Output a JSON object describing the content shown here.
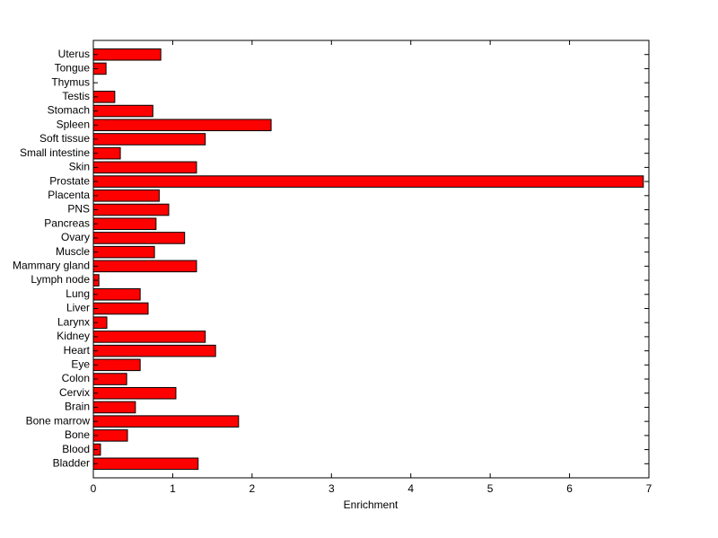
{
  "chart_data": {
    "type": "barh",
    "x_label": "Enrichment",
    "categories": [
      "Bladder",
      "Blood",
      "Bone",
      "Bone marrow",
      "Brain",
      "Cervix",
      "Colon",
      "Eye",
      "Heart",
      "Kidney",
      "Larynx",
      "Liver",
      "Lung",
      "Lymph node",
      "Mammary gland",
      "Muscle",
      "Ovary",
      "Pancreas",
      "PNS",
      "Placenta",
      "Prostate",
      "Skin",
      "Small intestine",
      "Soft tissue",
      "Spleen",
      "Stomach",
      "Testis",
      "Thymus",
      "Tongue",
      "Uterus"
    ],
    "values": [
      1.32,
      0.09,
      0.43,
      1.83,
      0.53,
      1.04,
      0.42,
      0.59,
      1.54,
      1.41,
      0.17,
      0.69,
      0.59,
      0.07,
      1.3,
      0.77,
      1.15,
      0.79,
      0.95,
      0.83,
      6.93,
      1.3,
      0.34,
      1.41,
      2.24,
      0.75,
      0.27,
      0,
      0.16,
      0.85
    ],
    "color": "#ff0000",
    "xlim": [
      0,
      7
    ],
    "xticks": [
      0,
      1,
      2,
      3,
      4,
      5,
      6,
      7
    ]
  }
}
